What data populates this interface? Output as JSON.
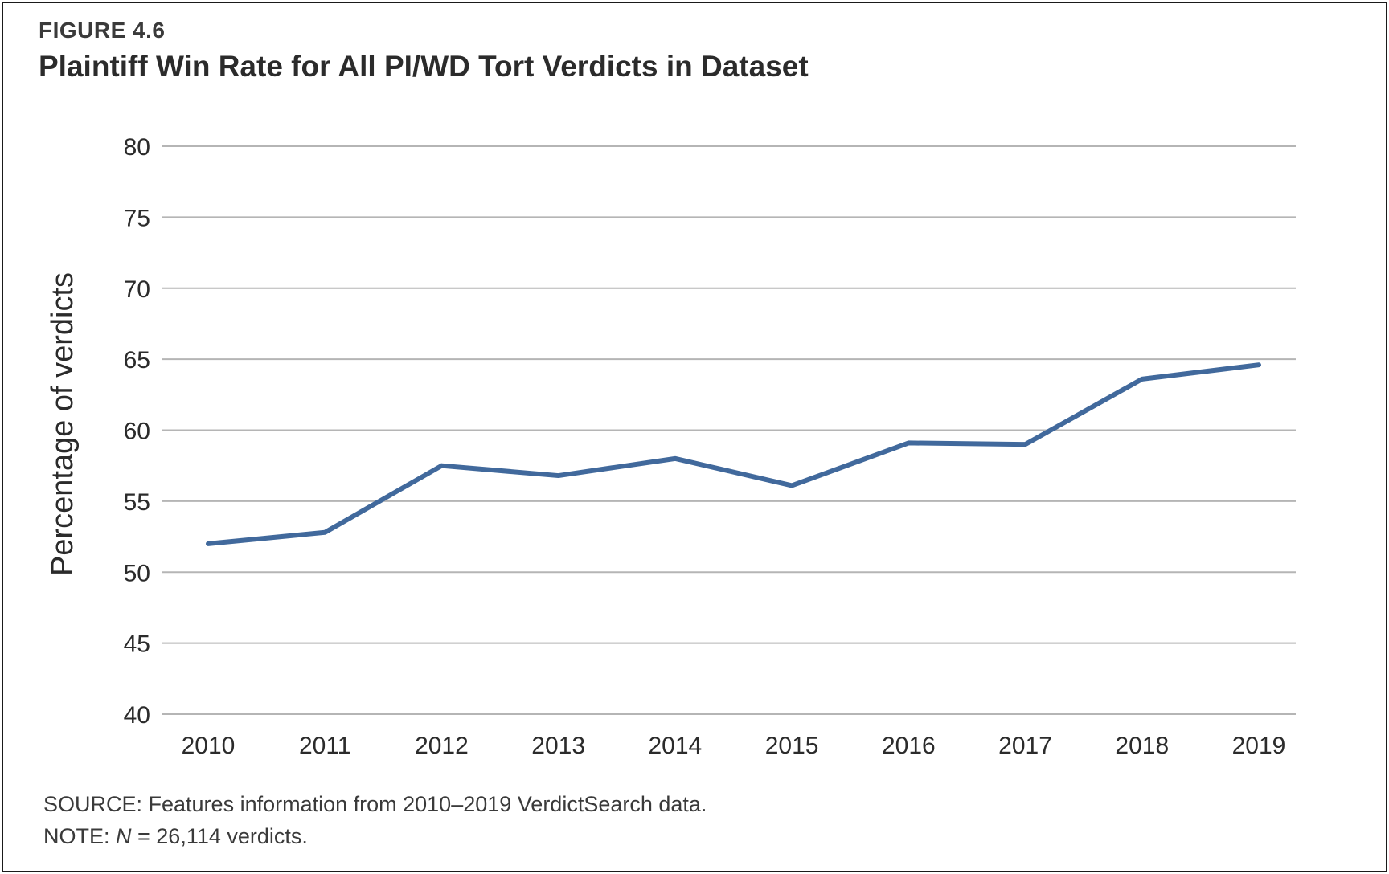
{
  "figure": {
    "label": "FIGURE 4.6",
    "title": "Plaintiff Win Rate for All PI/WD Tort Verdicts in Dataset"
  },
  "footer": {
    "source": "SOURCE: Features information from 2010–2019 VerdictSearch data.",
    "note_prefix": "NOTE: ",
    "note_n": "N",
    "note_rest": " = 26,114 verdicts."
  },
  "colors": {
    "line": "#41699c",
    "grid": "#b5b5b5",
    "text": "#2b2b2b"
  },
  "chart_data": {
    "type": "line",
    "title": "Plaintiff Win Rate for All PI/WD Tort Verdicts in Dataset",
    "xlabel": "",
    "ylabel": "Percentage of verdicts",
    "categories": [
      "2010",
      "2011",
      "2012",
      "2013",
      "2014",
      "2015",
      "2016",
      "2017",
      "2018",
      "2019"
    ],
    "series": [
      {
        "values": [
          52.0,
          52.8,
          57.5,
          56.8,
          58.0,
          56.1,
          59.1,
          59.0,
          63.6,
          64.6
        ]
      }
    ],
    "ylim": [
      40,
      80
    ],
    "yticks": [
      40,
      45,
      50,
      55,
      60,
      65,
      70,
      75,
      80
    ],
    "grid": true,
    "legend": "none"
  }
}
